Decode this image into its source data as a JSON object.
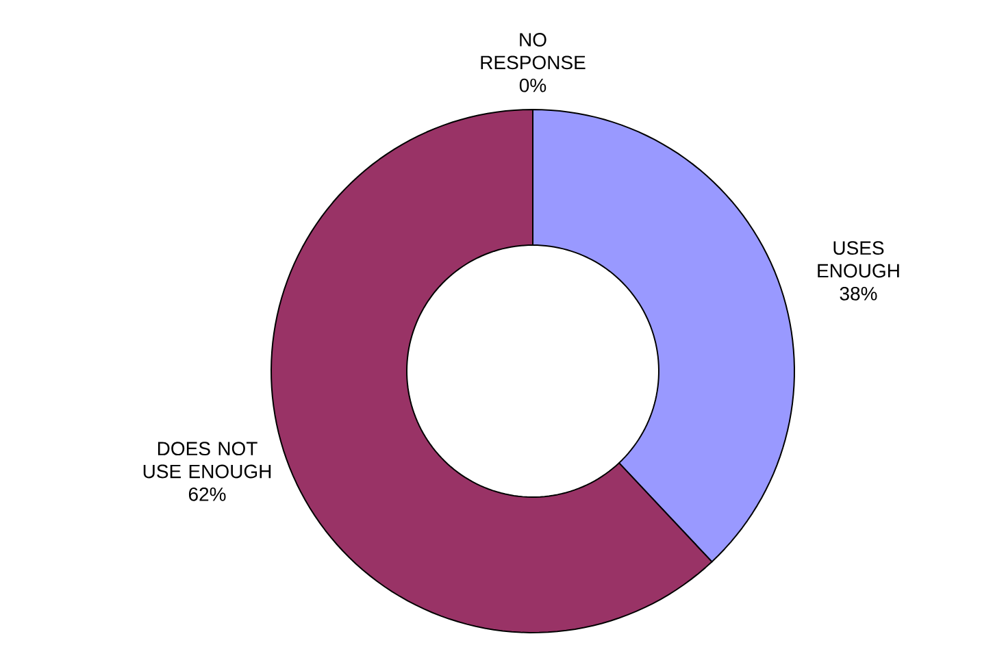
{
  "chart_data": {
    "type": "donut",
    "categories": [
      "USES ENOUGH",
      "DOES NOT USE ENOUGH",
      "NO RESPONSE"
    ],
    "values": [
      38,
      62,
      0
    ],
    "value_labels": [
      "38%",
      "62%",
      "0%"
    ],
    "colors": [
      "#9999ff",
      "#993366",
      "#ffffcc"
    ]
  }
}
